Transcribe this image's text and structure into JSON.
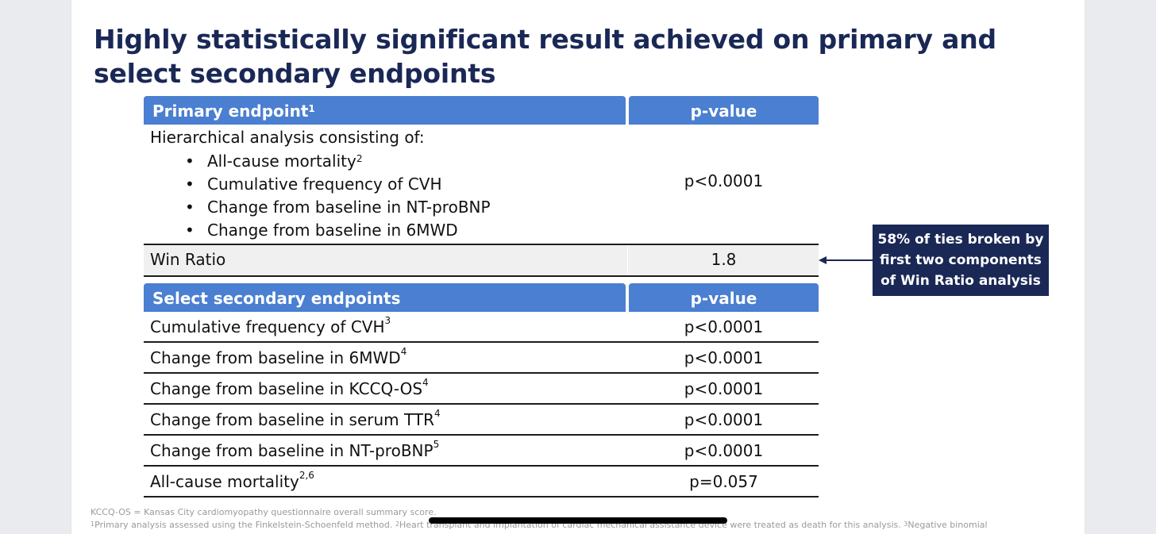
{
  "title": "Highly statistically significant result achieved on primary and select secondary endpoints",
  "primary": {
    "header_label": "Primary endpoint",
    "header_sup": "1",
    "header_pvalue": "p-value",
    "intro": "Hierarchical analysis consisting of:",
    "components": [
      {
        "text": "All-cause mortality",
        "sup": "2"
      },
      {
        "text": "Cumulative frequency of CVH",
        "sup": ""
      },
      {
        "text": "Change from baseline in NT-proBNP",
        "sup": ""
      },
      {
        "text": "Change from baseline in 6MWD",
        "sup": ""
      }
    ],
    "pvalue": "p<0.0001",
    "win_ratio_label": "Win Ratio",
    "win_ratio_value": "1.8"
  },
  "secondary": {
    "header_label": "Select secondary endpoints",
    "header_pvalue": "p-value",
    "rows": [
      {
        "label": "Cumulative frequency of CVH",
        "sup": "3",
        "pvalue": "p<0.0001"
      },
      {
        "label": "Change from baseline in 6MWD",
        "sup": "4",
        "pvalue": "p<0.0001"
      },
      {
        "label": "Change from baseline in KCCQ-OS",
        "sup": "4",
        "pvalue": "p<0.0001"
      },
      {
        "label": "Change from baseline in serum TTR",
        "sup": "4",
        "pvalue": "p<0.0001"
      },
      {
        "label": "Change from baseline in NT-proBNP",
        "sup": "5",
        "pvalue": "p<0.0001"
      },
      {
        "label": "All-cause mortality",
        "sup": "2,6",
        "pvalue": "p=0.057"
      }
    ]
  },
  "callout": {
    "line1": "58% of ties broken by",
    "line2": "first two components",
    "line3": "of Win Ratio analysis"
  },
  "footer": {
    "line1": "KCCQ-OS = Kansas City cardiomyopathy questionnaire overall summary score.",
    "line2_sup1": "1",
    "line2_a": "Primary analysis assessed using the Finkelstein-Schoenfeld method. ",
    "line2_sup2": "2",
    "line2_b": "Heart transplant and implantation of cardiac mechanical assistance device were treated as death for this analysis. ",
    "line2_sup3": "3",
    "line2_c": "Negative binomial"
  },
  "colors": {
    "title": "#1a2856",
    "header_blue": "#4a7fd1",
    "callout_navy": "#1a2856"
  }
}
